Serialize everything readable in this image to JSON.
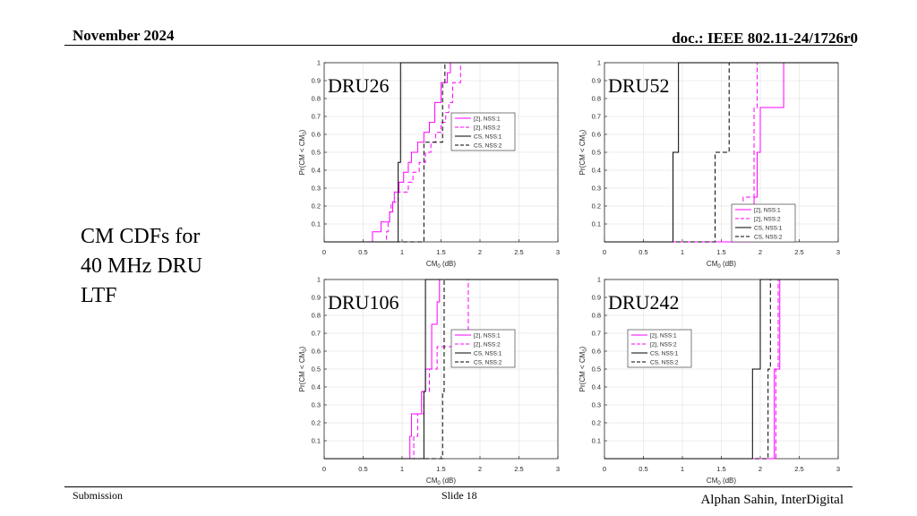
{
  "header": {
    "date": "November 2024",
    "doc": "doc.: IEEE 802.11-24/1726r0"
  },
  "side_title": {
    "line1": "CM CDFs for",
    "line2": "40 MHz DRU",
    "line3": "LTF"
  },
  "footer": {
    "left": "Submission",
    "center": "Slide 18",
    "right": "Alphan Sahin, InterDigital"
  },
  "colors": {
    "magenta": "#ff00ff",
    "black": "#000000",
    "grid": "#e6e6e6"
  },
  "chart_data": [
    {
      "type": "line",
      "title": "DRU26",
      "xlabel": "CM",
      "xlabel_sub": "0",
      "xlabel_unit": " (dB)",
      "ylabel": "Pr(CM < CM",
      "ylabel_sub": "0",
      "ylabel_close": ")",
      "xlim": [
        0,
        3
      ],
      "ylim": [
        0,
        1
      ],
      "xticks": [
        0,
        0.5,
        1,
        1.5,
        2,
        2.5,
        3
      ],
      "xtick_labels": [
        "0",
        "0.5",
        "1",
        "1.5",
        "2",
        "2.5",
        "3"
      ],
      "yticks": [
        0.1,
        0.2,
        0.3,
        0.4,
        0.5,
        0.6,
        0.7,
        0.8,
        0.9,
        1
      ],
      "ytick_labels": [
        "0.1",
        "0.2",
        "0.3",
        "0.4",
        "0.5",
        "0.6",
        "0.7",
        "0.8",
        "0.9",
        "1"
      ],
      "legend_position": "right",
      "series": [
        {
          "name": "[2], NSS:1",
          "color": "#ff00ff",
          "dash": "solid",
          "x": [
            0.62,
            0.73,
            0.84,
            0.88,
            0.9,
            0.96,
            1.02,
            1.08,
            1.12,
            1.2,
            1.28,
            1.35,
            1.42,
            1.5,
            1.58,
            1.62
          ],
          "y": [
            0.056,
            0.111,
            0.167,
            0.222,
            0.278,
            0.333,
            0.389,
            0.444,
            0.5,
            0.556,
            0.611,
            0.667,
            0.778,
            0.889,
            0.944,
            1.0
          ]
        },
        {
          "name": "[2], NSS:2",
          "color": "#ff00ff",
          "dash": "dashed",
          "x": [
            0.8,
            0.82,
            0.84,
            0.86,
            0.95,
            1.08,
            1.14,
            1.22,
            1.3,
            1.37,
            1.43,
            1.5,
            1.56,
            1.6,
            1.65,
            1.75
          ],
          "y": [
            0.056,
            0.111,
            0.167,
            0.222,
            0.278,
            0.333,
            0.389,
            0.444,
            0.5,
            0.556,
            0.611,
            0.667,
            0.722,
            0.778,
            0.889,
            1.0
          ]
        },
        {
          "name": "CS, NSS:1",
          "color": "#000000",
          "dash": "solid",
          "x": [
            0.95,
            0.98
          ],
          "y": [
            0.444,
            1.0
          ]
        },
        {
          "name": "CS, NSS:2",
          "color": "#000000",
          "dash": "dashed",
          "x": [
            1.28,
            1.52,
            1.55
          ],
          "y": [
            0.556,
            0.889,
            1.0
          ]
        }
      ]
    },
    {
      "type": "line",
      "title": "DRU52",
      "xlabel": "CM",
      "xlabel_sub": "0",
      "xlabel_unit": " (dB)",
      "ylabel": "Pr(CM < CM",
      "ylabel_sub": "0",
      "ylabel_close": ")",
      "xlim": [
        0,
        3
      ],
      "ylim": [
        0,
        1
      ],
      "xticks": [
        0,
        0.5,
        1,
        1.5,
        2,
        2.5,
        3
      ],
      "xtick_labels": [
        "0",
        "0.5",
        "1",
        "1.5",
        "2",
        "2.5",
        "3"
      ],
      "yticks": [
        0.1,
        0.2,
        0.3,
        0.4,
        0.5,
        0.6,
        0.7,
        0.8,
        0.9,
        1
      ],
      "ytick_labels": [
        "0.1",
        "0.2",
        "0.3",
        "0.4",
        "0.5",
        "0.6",
        "0.7",
        "0.8",
        "0.9",
        "1"
      ],
      "legend_position": "bottom-right",
      "series": [
        {
          "name": "[2], NSS:1",
          "color": "#ff00ff",
          "dash": "solid",
          "x": [
            1.92,
            1.96,
            2.0,
            2.25,
            2.3
          ],
          "y": [
            0.25,
            0.5,
            0.75,
            0.75,
            1.0
          ]
        },
        {
          "name": "[2], NSS:2",
          "color": "#ff00ff",
          "dash": "dashed",
          "x": [
            1.78,
            1.85,
            1.92,
            1.96
          ],
          "y": [
            0.25,
            0.25,
            0.75,
            1.0
          ]
        },
        {
          "name": "CS, NSS:1",
          "color": "#000000",
          "dash": "solid",
          "x": [
            0.88,
            0.93,
            0.95
          ],
          "y": [
            0.5,
            0.5,
            1.0
          ]
        },
        {
          "name": "CS, NSS:2",
          "color": "#000000",
          "dash": "dashed",
          "x": [
            1.42,
            1.56,
            1.6
          ],
          "y": [
            0.5,
            0.5,
            1.0
          ]
        }
      ]
    },
    {
      "type": "line",
      "title": "DRU106",
      "xlabel": "CM",
      "xlabel_sub": "0",
      "xlabel_unit": " (dB)",
      "ylabel": "Pr(CM < CM",
      "ylabel_sub": "0",
      "ylabel_close": ")",
      "xlim": [
        0,
        3
      ],
      "ylim": [
        0,
        1
      ],
      "xticks": [
        0,
        0.5,
        1,
        1.5,
        2,
        2.5,
        3
      ],
      "xtick_labels": [
        "0",
        "0.5",
        "1",
        "1.5",
        "2",
        "2.5",
        "3"
      ],
      "yticks": [
        0.1,
        0.2,
        0.3,
        0.4,
        0.5,
        0.6,
        0.7,
        0.8,
        0.9,
        1
      ],
      "ytick_labels": [
        "0.1",
        "0.2",
        "0.3",
        "0.4",
        "0.5",
        "0.6",
        "0.7",
        "0.8",
        "0.9",
        "1"
      ],
      "legend_position": "right",
      "series": [
        {
          "name": "[2], NSS:1",
          "color": "#ff00ff",
          "dash": "solid",
          "x": [
            1.1,
            1.12,
            1.25,
            1.3,
            1.38,
            1.45,
            1.48
          ],
          "y": [
            0.125,
            0.25,
            0.375,
            0.5,
            0.75,
            0.875,
            1.0
          ]
        },
        {
          "name": "[2], NSS:2",
          "color": "#ff00ff",
          "dash": "dashed",
          "x": [
            1.15,
            1.2,
            1.28,
            1.35,
            1.45,
            1.75,
            1.85
          ],
          "y": [
            0.125,
            0.25,
            0.375,
            0.5,
            0.625,
            0.625,
            1.0
          ]
        },
        {
          "name": "CS, NSS:1",
          "color": "#000000",
          "dash": "solid",
          "x": [
            1.28,
            1.3
          ],
          "y": [
            0.375,
            1.0
          ]
        },
        {
          "name": "CS, NSS:2",
          "color": "#000000",
          "dash": "dashed",
          "x": [
            1.52,
            1.54
          ],
          "y": [
            0.375,
            1.0
          ]
        }
      ]
    },
    {
      "type": "line",
      "title": "DRU242",
      "xlabel": "CM",
      "xlabel_sub": "0",
      "xlabel_unit": " (dB)",
      "ylabel": "Pr(CM < CM",
      "ylabel_sub": "0",
      "ylabel_close": ")",
      "xlim": [
        0,
        3
      ],
      "ylim": [
        0,
        1
      ],
      "xticks": [
        0,
        0.5,
        1,
        1.5,
        2,
        2.5,
        3
      ],
      "xtick_labels": [
        "0",
        "0.5",
        "1",
        "1.5",
        "2",
        "2.5",
        "3"
      ],
      "yticks": [
        0.1,
        0.2,
        0.3,
        0.4,
        0.5,
        0.6,
        0.7,
        0.8,
        0.9,
        1
      ],
      "ytick_labels": [
        "0.1",
        "0.2",
        "0.3",
        "0.4",
        "0.5",
        "0.6",
        "0.7",
        "0.8",
        "0.9",
        "1"
      ],
      "legend_position": "center-left",
      "series": [
        {
          "name": "[2], NSS:1",
          "color": "#ff00ff",
          "dash": "solid",
          "x": [
            2.18,
            2.25
          ],
          "y": [
            0.5,
            1.0
          ]
        },
        {
          "name": "[2], NSS:2",
          "color": "#ff00ff",
          "dash": "dashed",
          "x": [
            2.2,
            2.23
          ],
          "y": [
            0.5,
            1.0
          ]
        },
        {
          "name": "CS, NSS:1",
          "color": "#000000",
          "dash": "solid",
          "x": [
            1.9,
            1.95,
            2.0
          ],
          "y": [
            0.5,
            0.5,
            1.0
          ]
        },
        {
          "name": "CS, NSS:2",
          "color": "#000000",
          "dash": "dashed",
          "x": [
            2.1,
            2.13
          ],
          "y": [
            0.5,
            1.0
          ]
        }
      ]
    }
  ]
}
